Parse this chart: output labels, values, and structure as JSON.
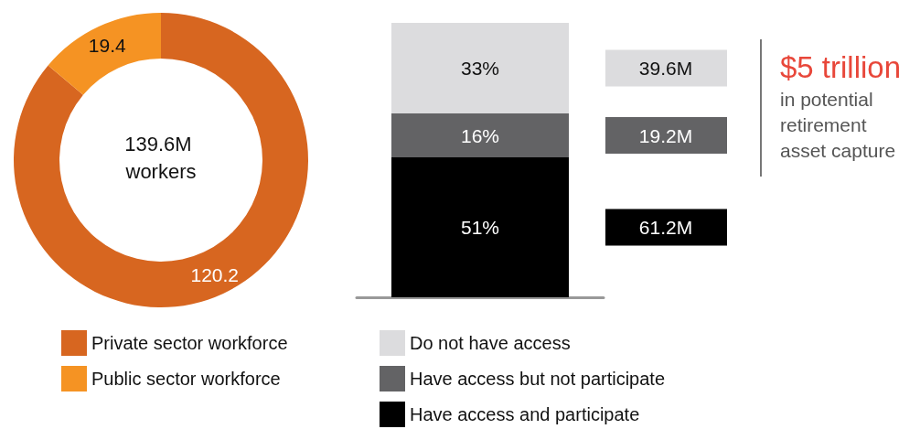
{
  "chart_data": [
    {
      "type": "donut",
      "categories": [
        "Private sector workforce",
        "Public sector workforce"
      ],
      "values": [
        120.2,
        19.4
      ],
      "colors": [
        "#d76620",
        "#f59323"
      ],
      "data_labels": true,
      "annotations": [
        "139.6M workers"
      ],
      "legend": "bottom"
    },
    {
      "type": "bar",
      "stacked": true,
      "categories": [
        null
      ],
      "ylim": [
        0,
        100
      ],
      "legend": "bottom",
      "series": [
        {
          "name": "Have access and participate",
          "color": "#000000",
          "values": [
            51
          ],
          "value_labels": [
            "51%"
          ]
        },
        {
          "name": "Have access but not participate",
          "color": "#636365",
          "values": [
            16
          ],
          "value_labels": [
            "16%"
          ]
        },
        {
          "name": "Do not have access",
          "color": "#dcdcde",
          "values": [
            33
          ],
          "value_labels": [
            "33%"
          ]
        }
      ],
      "annotations": [
        "61.2M",
        "19.2M",
        "39.6M"
      ]
    },
    {
      "type": "other",
      "title": "$5 trillion",
      "subtitle": "in potential retirement asset capture"
    }
  ]
}
